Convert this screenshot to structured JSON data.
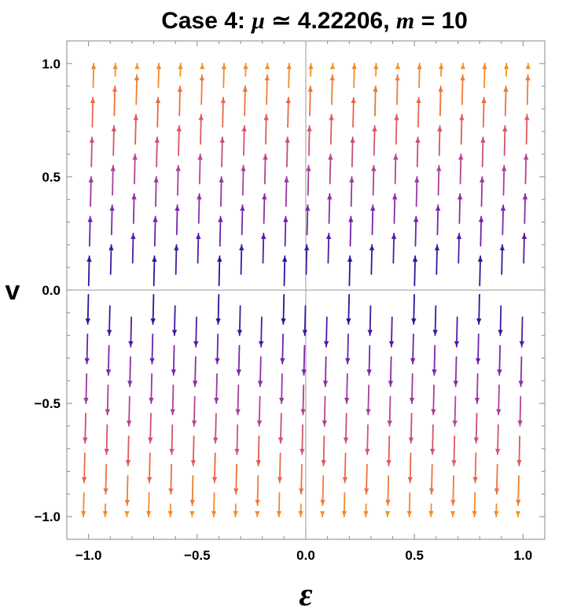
{
  "chart_data": {
    "type": "vector-field",
    "title": {
      "prefix": "Case 4: ",
      "mu_symbol": "μ",
      "approx_symbol": " ≃ ",
      "mu_value": "4.22206",
      "separator": ", ",
      "m_symbol": "m",
      "equals": " = ",
      "m_value": "10"
    },
    "xlabel": "ε",
    "ylabel": "v",
    "xlim": [
      -1.1,
      1.1
    ],
    "ylim": [
      -1.1,
      1.1
    ],
    "xticks": [
      -1.0,
      -0.5,
      0.0,
      0.5,
      1.0
    ],
    "yticks": [
      -1.0,
      -0.5,
      0.0,
      0.5,
      1.0
    ],
    "xtick_labels": [
      "−1.0",
      "−0.5",
      "0.0",
      "0.5",
      "1.0"
    ],
    "ytick_labels": [
      "−1.0",
      "−0.5",
      "0.0",
      "0.5",
      "1.0"
    ],
    "minor_ticks_per_major": 4,
    "field": {
      "description_of_direction": "d(epsilon)/dt = v/m, dv/dt = mu*v",
      "mu": 4.22206,
      "m": 10
    },
    "stream_seeds_x": [
      -1.0,
      -0.9,
      -0.8,
      -0.7,
      -0.6,
      -0.5,
      -0.4,
      -0.3,
      -0.2,
      -0.1,
      0.0,
      0.1,
      0.2,
      0.3,
      0.4,
      0.5,
      0.6,
      0.7,
      0.8,
      0.9,
      1.0
    ],
    "color_scale": [
      "#0d0d8c",
      "#6a1fb0",
      "#b0409a",
      "#e8604e",
      "#f49423"
    ],
    "grid": false,
    "axes_lines_through_origin": true
  }
}
